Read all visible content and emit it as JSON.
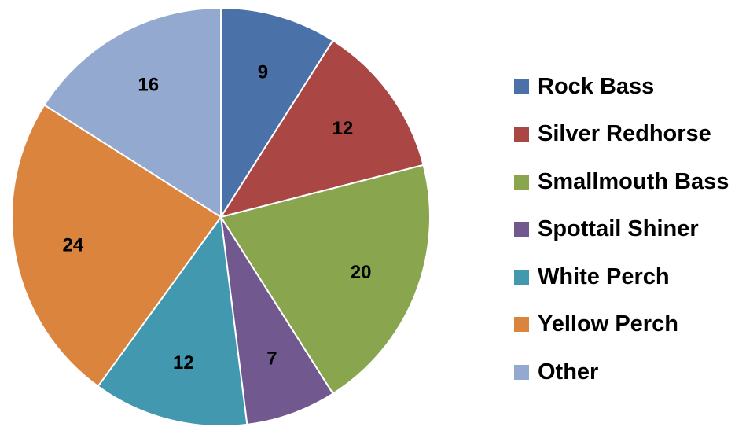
{
  "chart_data": {
    "type": "pie",
    "title": "",
    "start_angle_deg": 0,
    "direction": "clockwise",
    "legend_position": "right",
    "slices": [
      {
        "label": "Rock Bass",
        "value": 9,
        "color": "#4A72A8"
      },
      {
        "label": "Silver Redhorse",
        "value": 12,
        "color": "#AA4644"
      },
      {
        "label": "Smallmouth Bass",
        "value": 20,
        "color": "#89A54E"
      },
      {
        "label": "Spottail Shiner",
        "value": 7,
        "color": "#71588F"
      },
      {
        "label": "White Perch",
        "value": 12,
        "color": "#4198AF"
      },
      {
        "label": "Yellow Perch",
        "value": 24,
        "color": "#DB843D"
      },
      {
        "label": "Other",
        "value": 16,
        "color": "#93A9CF"
      }
    ]
  }
}
